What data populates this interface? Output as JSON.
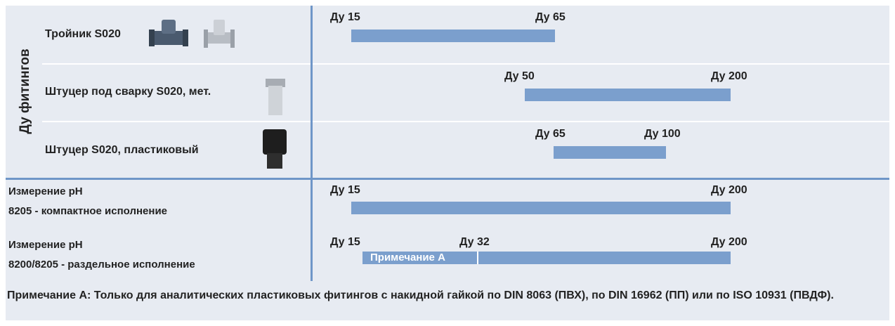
{
  "side_label": "Ду фитингов",
  "fitting_rows": [
    {
      "label": "Тройник S020",
      "start": "Ду 15",
      "end": "Ду 65"
    },
    {
      "label": "Штуцер под сварку S020, мет.",
      "start": "Ду 50",
      "end": "Ду 200"
    },
    {
      "label": "Штуцер S020, пластиковый",
      "start": "Ду 65",
      "end": "Ду 100"
    }
  ],
  "measurement_rows": [
    {
      "label_lines": [
        "Измерение pH",
        "8205 - компактное исполнение"
      ],
      "start": "Ду 15",
      "end": "Ду 200"
    },
    {
      "label_lines": [
        "Измерение pH",
        "8200/8205 - раздельное исполнение"
      ],
      "start": "Ду 15",
      "middle": "Ду 32",
      "end": "Ду 200",
      "bar_note": "Примечание А"
    }
  ],
  "note": "Примечание А: Только для аналитических пластиковых фитингов с накидной гайкой по DIN 8063 (ПВХ), по DIN 16962 (ПП) или по ISO 10931 (ПВДФ)."
}
